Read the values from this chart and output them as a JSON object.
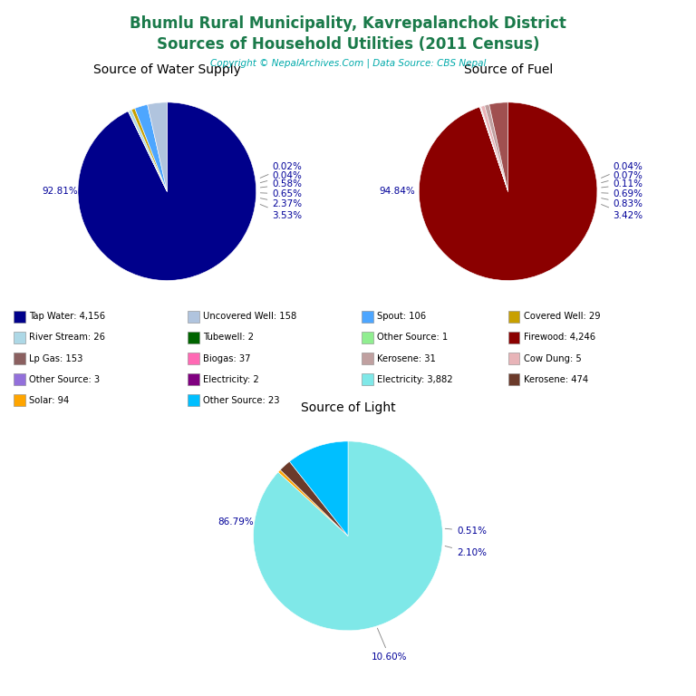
{
  "title_line1": "Bhumlu Rural Municipality, Kavrepalanchok District",
  "title_line2": "Sources of Household Utilities (2011 Census)",
  "title_color": "#1a7a4a",
  "copyright_text": "Copyright © NepalArchives.Com | Data Source: CBS Nepal",
  "copyright_color": "#00aaaa",
  "water_title": "Source of Water Supply",
  "water_pcts": [
    92.81,
    0.02,
    0.04,
    0.58,
    0.65,
    2.37,
    3.53
  ],
  "water_colors": [
    "#00008B",
    "#FFD700",
    "#006400",
    "#add8e6",
    "#c8a000",
    "#4da6ff",
    "#b0c4de"
  ],
  "water_startangle": 90,
  "fuel_title": "Source of Fuel",
  "fuel_pcts": [
    94.84,
    0.04,
    0.07,
    0.11,
    0.69,
    0.83,
    3.42
  ],
  "fuel_colors": [
    "#8B0000",
    "#d4b0b0",
    "#c08080",
    "#9b6b6b",
    "#e8b4b8",
    "#c0a0a0",
    "#a05050"
  ],
  "fuel_startangle": 90,
  "light_title": "Source of Light",
  "light_pcts": [
    86.79,
    0.51,
    2.1,
    10.6
  ],
  "light_colors": [
    "#7FE8E8",
    "#FFA500",
    "#6B3A2A",
    "#00BFFF"
  ],
  "light_startangle": 90,
  "legend_cols": [
    [
      {
        "label": "Tap Water: 4,156",
        "color": "#00008B"
      },
      {
        "label": "River Stream: 26",
        "color": "#add8e6"
      },
      {
        "label": "Lp Gas: 153",
        "color": "#8B6060"
      },
      {
        "label": "Other Source: 3",
        "color": "#9370DB"
      },
      {
        "label": "Solar: 94",
        "color": "#FFA500"
      }
    ],
    [
      {
        "label": "Uncovered Well: 158",
        "color": "#b0c4de"
      },
      {
        "label": "Tubewell: 2",
        "color": "#006400"
      },
      {
        "label": "Biogas: 37",
        "color": "#FF69B4"
      },
      {
        "label": "Electricity: 2",
        "color": "#800080"
      },
      {
        "label": "Other Source: 23",
        "color": "#00BFFF"
      }
    ],
    [
      {
        "label": "Spout: 106",
        "color": "#4da6ff"
      },
      {
        "label": "Other Source: 1",
        "color": "#90EE90"
      },
      {
        "label": "Kerosene: 31",
        "color": "#c0a0a0"
      },
      {
        "label": "Electricity: 3,882",
        "color": "#7FE8E8"
      }
    ],
    [
      {
        "label": "Covered Well: 29",
        "color": "#c8a000"
      },
      {
        "label": "Firewood: 4,246",
        "color": "#8B0000"
      },
      {
        "label": "Cow Dung: 5",
        "color": "#e8b4b8"
      },
      {
        "label": "Kerosene: 474",
        "color": "#6B3A2A"
      }
    ]
  ]
}
